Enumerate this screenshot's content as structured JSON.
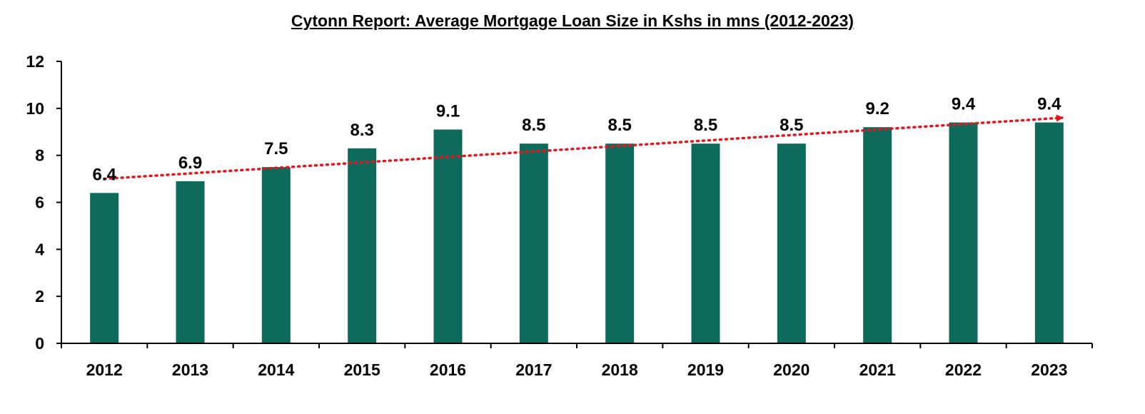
{
  "chart_data": {
    "type": "bar",
    "title": "Cytonn Report: Average Mortgage Loan Size in Kshs in mns (2012-2023)",
    "xlabel": "",
    "ylabel": "",
    "categories": [
      "2012",
      "2013",
      "2014",
      "2015",
      "2016",
      "2017",
      "2018",
      "2019",
      "2020",
      "2021",
      "2022",
      "2023"
    ],
    "series": [
      {
        "values": [
          6.4,
          6.9,
          7.5,
          8.3,
          9.1,
          8.5,
          8.5,
          8.5,
          8.5,
          9.2,
          9.4,
          9.4
        ]
      }
    ],
    "data_labels": [
      "6.4",
      "6.9",
      "7.5",
      "8.3",
      "9.1",
      "8.5",
      "8.5",
      "8.5",
      "8.5",
      "9.2",
      "9.4",
      "9.4"
    ],
    "ylim": [
      0,
      12
    ],
    "yticks": [
      "0",
      "2",
      "4",
      "6",
      "8",
      "10",
      "12"
    ],
    "grid": false,
    "legend": "none",
    "trendline": {
      "style": "dotted",
      "arrow": true,
      "start_value": 7.0,
      "end_value": 9.6
    },
    "colors": {
      "bar": "#0e6b5b",
      "trendline": "#e8141e",
      "axis": "#000000"
    }
  }
}
